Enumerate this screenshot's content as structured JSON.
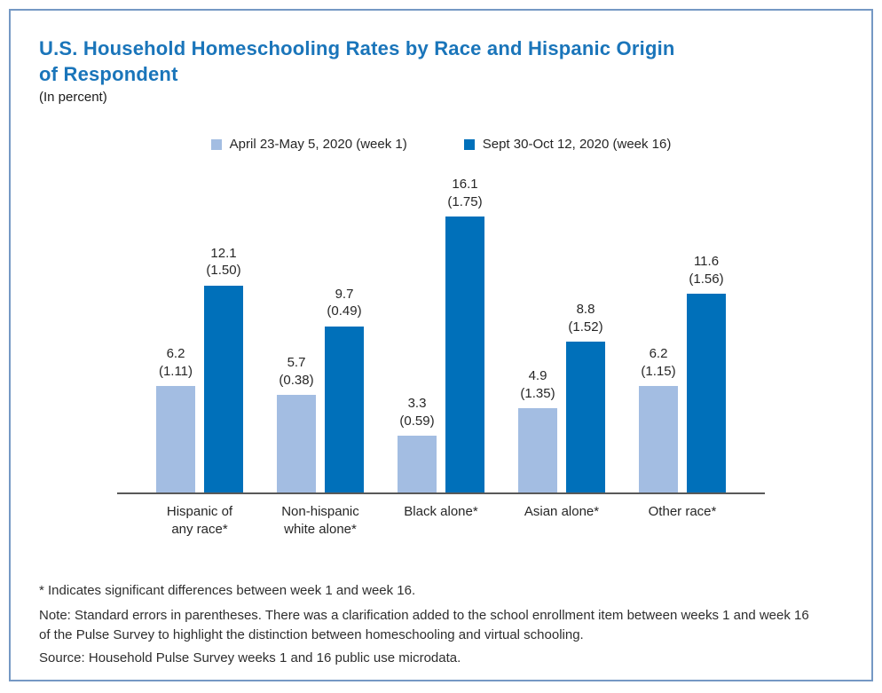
{
  "header": {
    "title": "U.S. Household Homeschooling Rates by Race and Hispanic Origin of Respondent",
    "subtitle": "(In percent)",
    "title_color": "#1a75ba"
  },
  "legend": {
    "items": [
      {
        "label": "April 23-May 5, 2020 (week 1)",
        "color": "#a3bde2"
      },
      {
        "label": "Sept 30-Oct 12, 2020 (week 16)",
        "color": "#0070ba"
      }
    ]
  },
  "chart_data": {
    "type": "bar",
    "title": "U.S. Household Homeschooling Rates by Race and Hispanic Origin of Respondent",
    "subtitle": "(In percent)",
    "categories": [
      "Hispanic of any race*",
      "Non-hispanic white alone*",
      "Black alone*",
      "Asian alone*",
      "Other race*"
    ],
    "series": [
      {
        "name": "April 23-May 5, 2020 (week 1)",
        "color": "#a3bde2",
        "values": [
          6.2,
          5.7,
          3.3,
          4.9,
          6.2
        ],
        "standard_errors": [
          "1.11",
          "0.38",
          "0.59",
          "1.35",
          "1.15"
        ]
      },
      {
        "name": "Sept 30-Oct 12, 2020 (week 16)",
        "color": "#0070ba",
        "values": [
          12.1,
          9.7,
          16.1,
          8.8,
          11.6
        ],
        "standard_errors": [
          "1.50",
          "0.49",
          "1.75",
          "1.52",
          "1.56"
        ]
      }
    ],
    "ylim": [
      0,
      17
    ],
    "grid": false,
    "legend_position": "top",
    "value_labels": "value with standard error in parentheses above each bar"
  },
  "footnotes": {
    "significance": "* Indicates significant differences between week 1 and week 16.",
    "note": "Note: Standard errors in parentheses. There was a clarification added to the school enrollment item between weeks 1 and week 16 of the Pulse Survey to highlight the distinction between homeschooling and virtual schooling.",
    "source": "Source: Household Pulse Survey weeks 1 and 16 public use microdata."
  },
  "frame": {
    "border_color": "#7598c4"
  }
}
